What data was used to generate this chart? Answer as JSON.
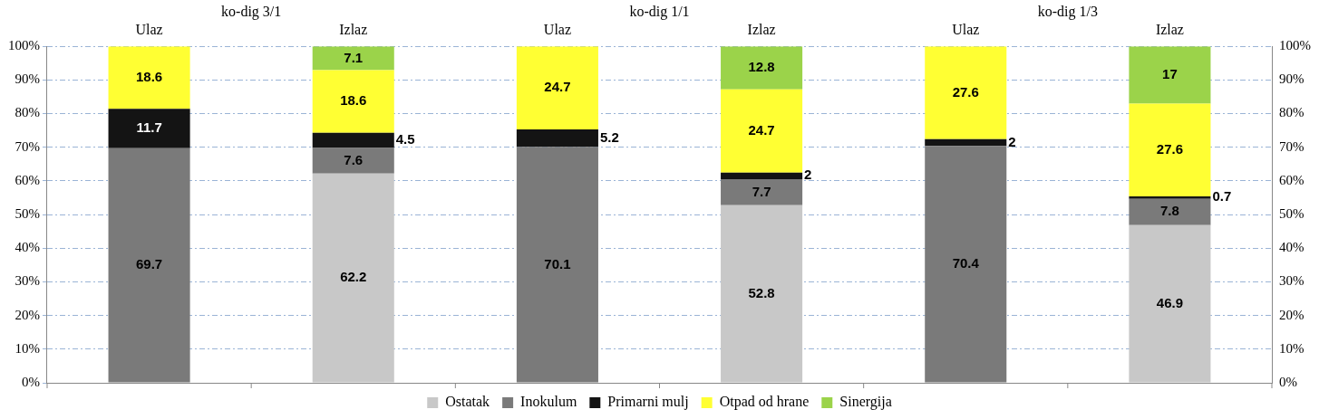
{
  "chart_data": {
    "type": "bar",
    "stacked": true,
    "categories": [
      "Ulaz",
      "Izlaz",
      "Ulaz",
      "Izlaz",
      "Ulaz",
      "Izlaz"
    ],
    "series": [
      {
        "name": "Ostatak",
        "color": "#c8c8c8",
        "values": [
          null,
          62.2,
          null,
          52.8,
          null,
          46.9
        ]
      },
      {
        "name": "Inokulum",
        "color": "#7a7a7a",
        "values": [
          69.7,
          7.6,
          70.1,
          7.7,
          70.4,
          7.8
        ]
      },
      {
        "name": "Primarni mulj",
        "color": "#141414",
        "values": [
          11.7,
          4.5,
          5.2,
          2,
          2,
          0.7
        ]
      },
      {
        "name": "Otpad od hrane",
        "color": "#ffff33",
        "values": [
          18.6,
          18.6,
          24.7,
          24.7,
          27.6,
          27.6
        ]
      },
      {
        "name": "Sinergija",
        "color": "#9bd34a",
        "values": [
          null,
          7.1,
          null,
          12.8,
          null,
          17
        ]
      }
    ],
    "annotations": [
      "ko-dig 3/1",
      "ko-dig 1/1",
      "ko-dig 1/3"
    ],
    "ylim": [
      0,
      100
    ],
    "yticks": [
      {
        "value": 0,
        "label": "0%"
      },
      {
        "value": 10,
        "label": "10%"
      },
      {
        "value": 20,
        "label": "20%"
      },
      {
        "value": 30,
        "label": "30%"
      },
      {
        "value": 40,
        "label": "40%"
      },
      {
        "value": 50,
        "label": "50%"
      },
      {
        "value": 60,
        "label": "60%"
      },
      {
        "value": 70,
        "label": "70%"
      },
      {
        "value": 80,
        "label": "80%"
      },
      {
        "value": 90,
        "label": "90%"
      },
      {
        "value": 100,
        "label": "100%"
      }
    ],
    "y2lim": [
      0,
      100
    ],
    "y2ticks": [
      {
        "value": 0,
        "label": "0%"
      },
      {
        "value": 10,
        "label": "10%"
      },
      {
        "value": 20,
        "label": "20%"
      },
      {
        "value": 30,
        "label": "30%"
      },
      {
        "value": 40,
        "label": "40%"
      },
      {
        "value": 50,
        "label": "50%"
      },
      {
        "value": 60,
        "label": "60%"
      },
      {
        "value": 70,
        "label": "70%"
      },
      {
        "value": 80,
        "label": "80%"
      },
      {
        "value": 90,
        "label": "90%"
      },
      {
        "value": 100,
        "label": "100%"
      }
    ],
    "grid": "y",
    "legend": "bottom",
    "data_labels": true
  }
}
